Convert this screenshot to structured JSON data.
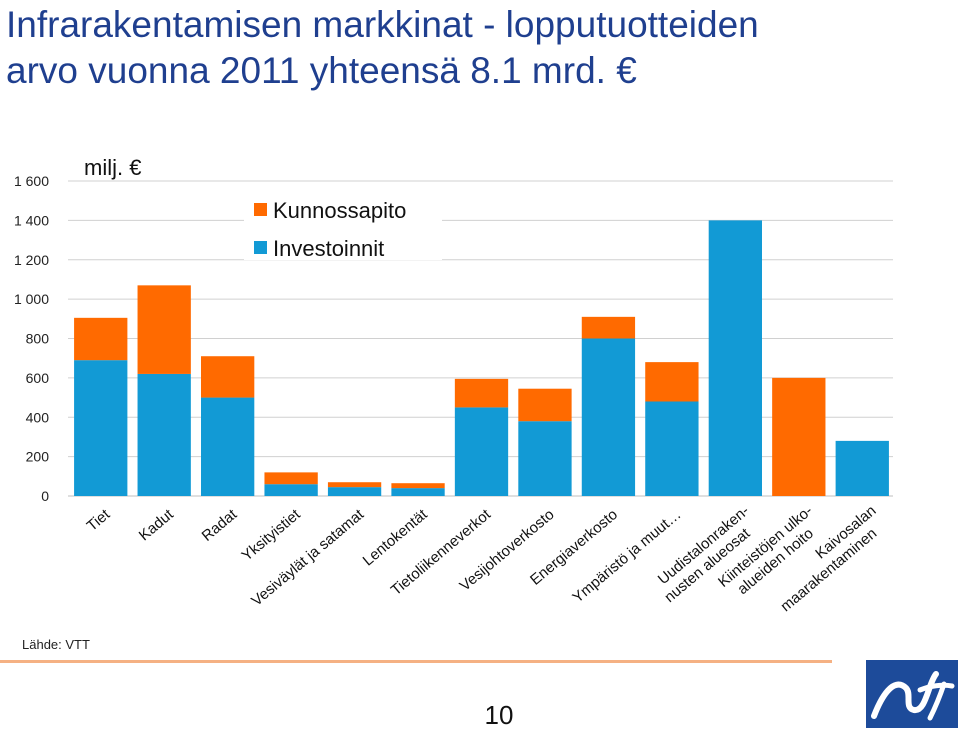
{
  "slide": {
    "title_line1": "Infrarakentamisen markkinat - lopputuotteiden",
    "title_line2": "arvo vuonna 2011 yhteensä 8.1 mrd. €",
    "source": "Lähde: VTT",
    "page_number": "10"
  },
  "colors": {
    "maintenance": "#ff6a00",
    "investment": "#129ad5",
    "title": "#1f3f8f",
    "grid": "#d0d0d0",
    "logo_bg": "#1d4b9a"
  },
  "chart_data": {
    "type": "bar",
    "stacked": true,
    "unit_label": "milj. €",
    "ylim": [
      0,
      1600
    ],
    "yticks": [
      0,
      200,
      400,
      600,
      800,
      1000,
      1200,
      1400,
      1600
    ],
    "ytick_labels": [
      "0",
      "200",
      "400",
      "600",
      "800",
      "1 000",
      "1 200",
      "1 400",
      "1 600"
    ],
    "grid": true,
    "legend_position": "top-center",
    "categories": [
      [
        "Tiet"
      ],
      [
        "Kadut"
      ],
      [
        "Radat"
      ],
      [
        "Yksityistiet"
      ],
      [
        "Vesiväylät ja satamat"
      ],
      [
        "Lentokentät"
      ],
      [
        "Tietoliikenneverkot"
      ],
      [
        "Vesijohtoverkosto"
      ],
      [
        "Energiaverkosto"
      ],
      [
        "Ympäristö ja muut…"
      ],
      [
        "Uudistalonraken-",
        "nusten alueosat"
      ],
      [
        "Kiinteistöjen ulko-",
        "alueiden hoito"
      ],
      [
        "Kaivosalan",
        "maarakentaminen"
      ]
    ],
    "series": [
      {
        "name": "Investoinnit",
        "values": [
          690,
          620,
          500,
          60,
          45,
          40,
          450,
          380,
          800,
          480,
          1400,
          0,
          280
        ]
      },
      {
        "name": "Kunnossapito",
        "values": [
          215,
          450,
          210,
          60,
          25,
          25,
          145,
          165,
          110,
          200,
          0,
          600,
          0
        ]
      }
    ],
    "legend": [
      {
        "name": "Kunnossapito",
        "color_key": "maintenance"
      },
      {
        "name": "Investoinnit",
        "color_key": "investment"
      }
    ]
  }
}
